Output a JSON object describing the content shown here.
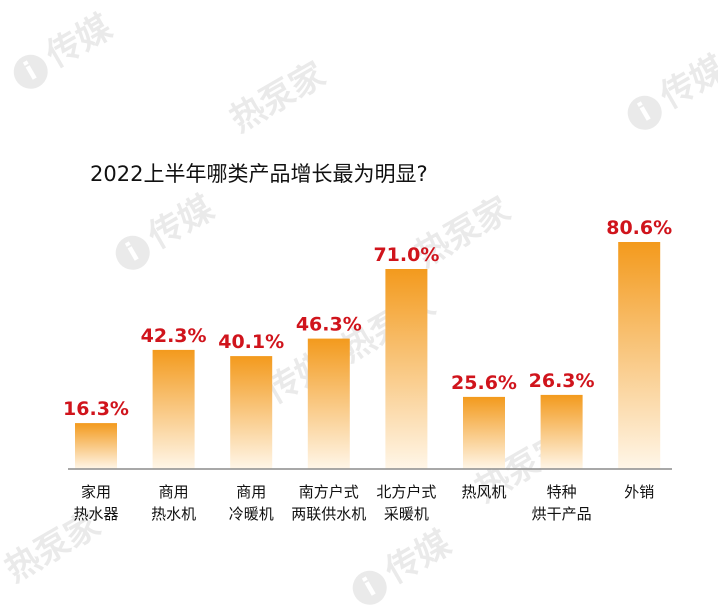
{
  "watermark": {
    "badge": "i",
    "text_a": "传媒",
    "text_b": "热泵家"
  },
  "chart_data": {
    "type": "bar",
    "title": "2022上半年哪类产品增长最为明显?",
    "categories": [
      [
        "家用",
        "热水器"
      ],
      [
        "商用",
        "热水机"
      ],
      [
        "商用",
        "冷暖机"
      ],
      [
        "南方户式",
        "两联供水机"
      ],
      [
        "北方户式",
        "采暖机"
      ],
      [
        "热风机"
      ],
      [
        "特种",
        "烘干产品"
      ],
      [
        "外销"
      ]
    ],
    "values": [
      16.3,
      42.3,
      40.1,
      46.3,
      71.0,
      25.6,
      26.3,
      80.6
    ],
    "value_labels": [
      "16.3%",
      "42.3%",
      "40.1%",
      "46.3%",
      "71.0%",
      "25.6%",
      "26.3%",
      "80.6%"
    ],
    "ylim": [
      0,
      80.6
    ],
    "grid": false,
    "colors": {
      "bar_top": "#f39a1d",
      "bar_bottom": "#fff6e8",
      "value_label": "#d0141c",
      "baseline": "#8c8c8c",
      "text": "#111111"
    }
  }
}
